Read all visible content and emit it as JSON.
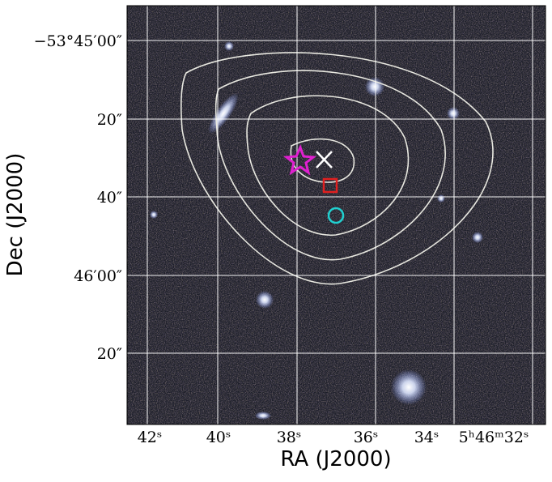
{
  "axes": {
    "x_label": "RA (J2000)",
    "y_label": "Dec (J2000)",
    "x_ticks": [
      "42ˢ",
      "40ˢ",
      "38ˢ",
      "36ˢ",
      "34ˢ",
      "5ʰ46ᵐ32ˢ"
    ],
    "y_ticks": [
      "−53°45′00″",
      "20″",
      "40″",
      "46′00″",
      "20″"
    ]
  }
}
